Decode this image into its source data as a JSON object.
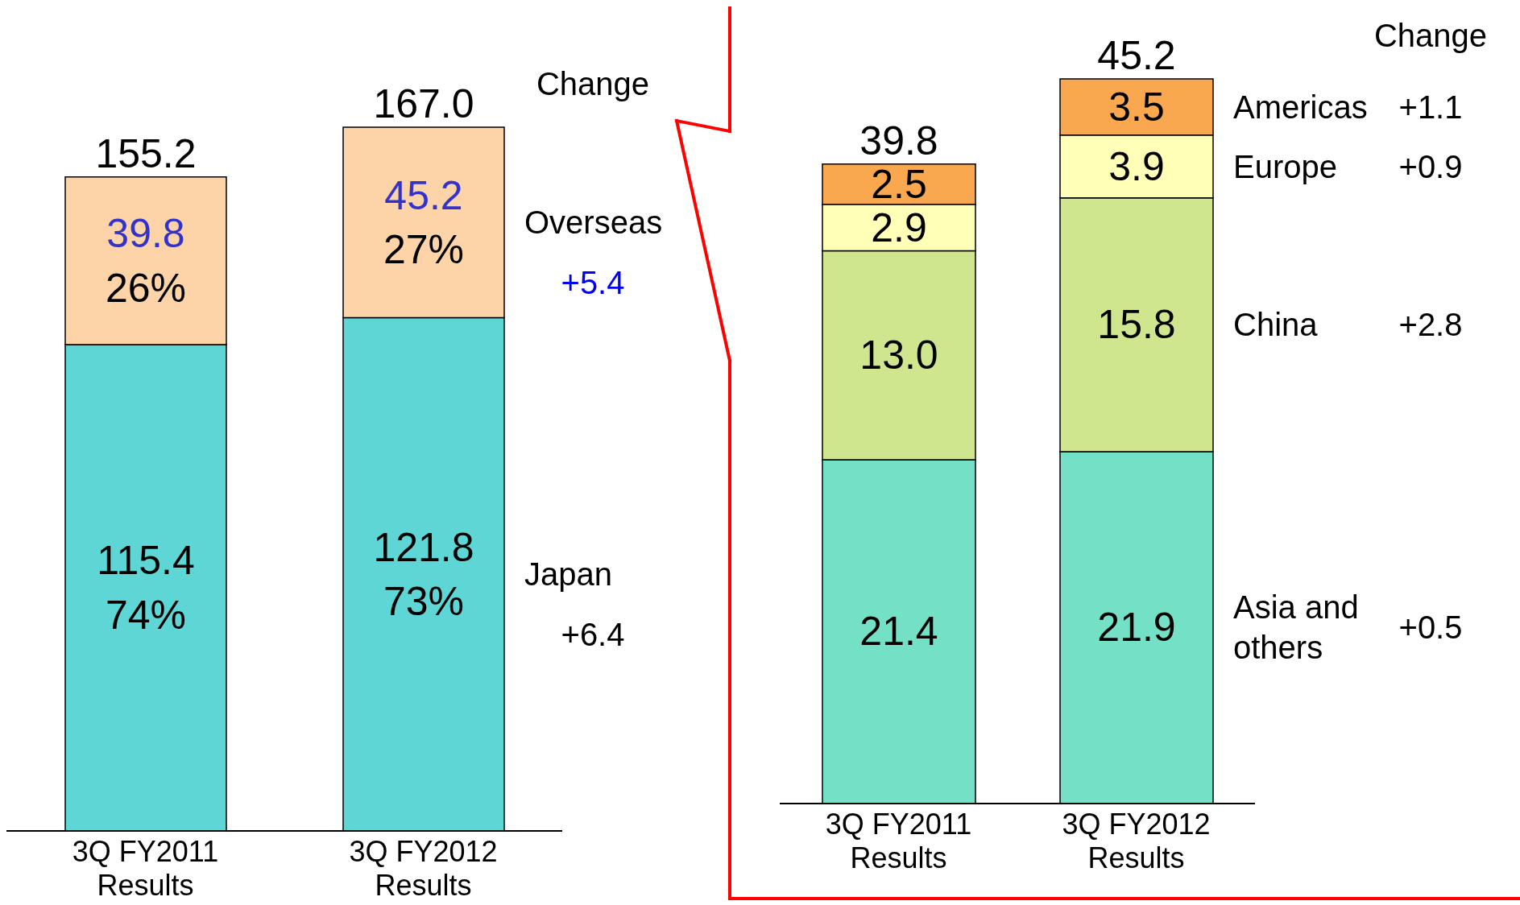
{
  "chart_data": [
    {
      "type": "bar",
      "stacked": true,
      "categories": [
        "3Q FY2011\nResults",
        "3Q FY2012\nResults"
      ],
      "series": [
        {
          "name": "Japan",
          "color": "#5fd6d6",
          "values": [
            115.4,
            121.8
          ],
          "value_labels": [
            "115.4\n74%",
            "121.8\n73%"
          ]
        },
        {
          "name": "Overseas",
          "color": "#fdd3a8",
          "values": [
            39.8,
            45.2
          ],
          "value_labels": [
            "39.8\n26%",
            "45.2\n27%"
          ]
        }
      ],
      "totals": [
        "155.2",
        "167.0"
      ],
      "annotations": [
        "Change",
        "+6.4",
        "+5.4"
      ]
    },
    {
      "type": "bar",
      "stacked": true,
      "categories": [
        "3Q FY2011\nResults",
        "3Q FY2012\nResults"
      ],
      "series": [
        {
          "name": "Asia and others",
          "color": "#74e0c6",
          "values": [
            21.4,
            21.9
          ],
          "value_labels": [
            "21.4",
            "21.9"
          ]
        },
        {
          "name": "China",
          "color": "#cfe58e",
          "values": [
            13.0,
            15.8
          ],
          "value_labels": [
            "13.0",
            "15.8"
          ]
        },
        {
          "name": "Europe",
          "color": "#ffffb8",
          "values": [
            2.9,
            3.9
          ],
          "value_labels": [
            "2.9",
            "3.9"
          ]
        },
        {
          "name": "Americas",
          "color": "#f9a850",
          "values": [
            2.5,
            3.5
          ],
          "value_labels": [
            "2.5",
            "3.5"
          ]
        }
      ],
      "totals": [
        "39.8",
        "45.2"
      ],
      "annotations": [
        "Change",
        "+0.5",
        "+2.8",
        "+0.9",
        "+1.1"
      ]
    }
  ]
}
